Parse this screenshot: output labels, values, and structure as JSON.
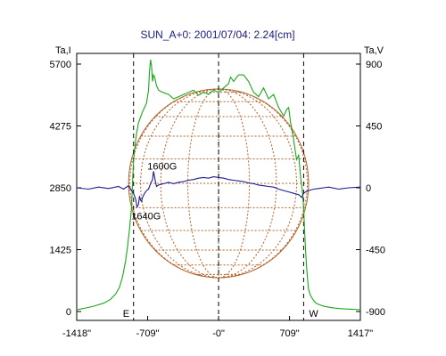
{
  "chart_data": {
    "type": "line",
    "title": "SUN_A+0: 2001/07/04: 2.24[cm]",
    "left_axis_label": "Ta,I",
    "right_axis_label": "Ta,V",
    "left_ylim": [
      0,
      5700
    ],
    "right_ylim": [
      -900,
      900
    ],
    "xlim": [
      -1418,
      1417
    ],
    "x_ticks": [
      {
        "value": -1418,
        "label": "-1418\""
      },
      {
        "value": -709,
        "label": "-709\""
      },
      {
        "value": 0,
        "label": "-0\""
      },
      {
        "value": 709,
        "label": "709\""
      },
      {
        "value": 1417,
        "label": "1417\""
      }
    ],
    "left_ticks": [
      {
        "value": 5700,
        "label": "5700"
      },
      {
        "value": 4275,
        "label": "4275"
      },
      {
        "value": 2850,
        "label": "2850"
      },
      {
        "value": 1425,
        "label": "1425"
      },
      {
        "value": 0,
        "label": "0"
      }
    ],
    "right_ticks": [
      {
        "value": 900,
        "label": "900"
      },
      {
        "value": 450,
        "label": "450"
      },
      {
        "value": 0,
        "label": "0"
      },
      {
        "value": -450,
        "label": "-450"
      },
      {
        "value": -900,
        "label": "-900"
      }
    ],
    "limb_markers": [
      {
        "x": -850,
        "label": "E"
      },
      {
        "x": 850,
        "label": "W"
      }
    ],
    "center_marker_x": 0,
    "disk_radius": 900,
    "annotations": [
      {
        "text": "1600G",
        "x": -640,
        "y_right": 120
      },
      {
        "text": "1640G",
        "x": -800,
        "y_right": -140
      }
    ],
    "series": [
      {
        "axis": "left",
        "color": "#1aa81a",
        "x": [
          -1418,
          -1350,
          -1250,
          -1150,
          -1080,
          -1030,
          -990,
          -960,
          -930,
          -910,
          -890,
          -870,
          -860,
          -850,
          -840,
          -830,
          -820,
          -800,
          -760,
          -720,
          -700,
          -690,
          -680,
          -670,
          -660,
          -650,
          -640,
          -630,
          -620,
          -600,
          -560,
          -500,
          -450,
          -400,
          -350,
          -300,
          -250,
          -200,
          -150,
          -100,
          -50,
          0,
          50,
          100,
          120,
          150,
          200,
          250,
          300,
          350,
          400,
          450,
          500,
          550,
          600,
          650,
          680,
          700,
          720,
          740,
          760,
          780,
          800,
          820,
          840,
          850,
          860,
          870,
          880,
          890,
          900,
          920,
          950,
          980,
          1050,
          1150,
          1250,
          1350,
          1417
        ],
        "values": [
          40,
          70,
          120,
          190,
          280,
          400,
          560,
          800,
          1150,
          1500,
          1900,
          2400,
          3000,
          3450,
          3700,
          3950,
          4100,
          4350,
          4600,
          4800,
          5100,
          5550,
          5800,
          5650,
          5300,
          5450,
          5400,
          5300,
          5200,
          5100,
          5050,
          5000,
          4900,
          4950,
          5000,
          5050,
          5100,
          4980,
          5050,
          5000,
          5100,
          5050,
          5150,
          5250,
          5400,
          5300,
          5450,
          5450,
          5300,
          5050,
          4950,
          5150,
          4900,
          5000,
          4700,
          4500,
          4650,
          4700,
          4350,
          4100,
          3800,
          3500,
          3600,
          3100,
          2700,
          2400,
          1850,
          1400,
          1000,
          720,
          500,
          360,
          250,
          180,
          120,
          80,
          60,
          50,
          40
        ]
      },
      {
        "axis": "right",
        "color": "#1c1c8c",
        "x": [
          -1418,
          -1300,
          -1200,
          -1100,
          -1000,
          -950,
          -900,
          -870,
          -850,
          -830,
          -815,
          -800,
          -790,
          -780,
          -770,
          -760,
          -740,
          -720,
          -700,
          -680,
          -660,
          -650,
          -640,
          -630,
          -620,
          -600,
          -550,
          -500,
          -450,
          -400,
          -350,
          -300,
          -250,
          -200,
          -150,
          -100,
          -50,
          0,
          50,
          100,
          150,
          200,
          250,
          300,
          350,
          400,
          450,
          500,
          550,
          600,
          650,
          700,
          750,
          800,
          830,
          850,
          870,
          900,
          950,
          1000,
          1050,
          1100,
          1200,
          1300,
          1417
        ],
        "values": [
          0,
          -10,
          5,
          -5,
          10,
          -10,
          15,
          -20,
          -40,
          -80,
          -140,
          -120,
          -60,
          -90,
          -100,
          -70,
          -40,
          -20,
          -10,
          30,
          60,
          120,
          80,
          40,
          10,
          20,
          30,
          40,
          30,
          40,
          45,
          55,
          60,
          70,
          75,
          70,
          80,
          75,
          70,
          60,
          55,
          50,
          45,
          35,
          30,
          20,
          15,
          10,
          5,
          -10,
          -20,
          -30,
          -40,
          -50,
          -70,
          -40,
          -30,
          -20,
          -10,
          -5,
          0,
          5,
          -10,
          0,
          5
        ]
      }
    ]
  }
}
